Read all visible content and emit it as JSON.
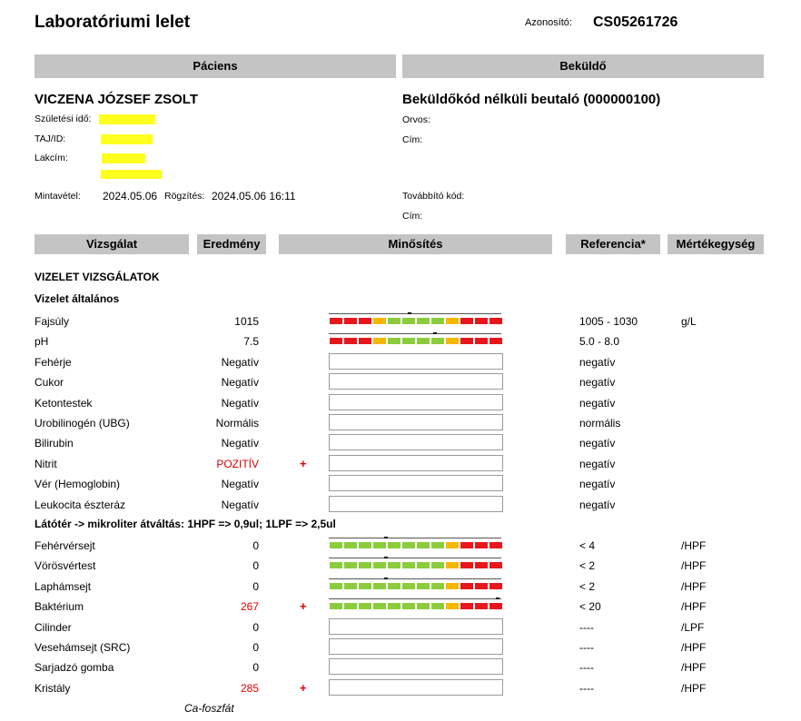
{
  "header": {
    "title": "Laboratóriumi lelet",
    "id_label": "Azonosító:",
    "id_value": "CS05261726"
  },
  "bands": {
    "patient": "Páciens",
    "sender": "Beküldő"
  },
  "patient": {
    "name": "VICZENA JÓZSEF ZSOLT",
    "birth_label": "Születési idő:",
    "taj_label": "TAJ/ID:",
    "address_label": "Lakcím:",
    "sampling_label": "Mintavétel:",
    "sampling_date": "2024.05.06",
    "record_label": "Rögzítés:",
    "record_date": "2024.05.06 16:11"
  },
  "sender": {
    "name": "Beküldőkód nélküli beutaló (000000100)",
    "doctor_label": "Orvos:",
    "address_label": "Cím:",
    "forward_label": "Továbbító kód:",
    "address2_label": "Cím:"
  },
  "columns": {
    "test": "Vizsgálat",
    "result": "Eredmény",
    "rating": "Minősítés",
    "reference": "Referencia*",
    "unit": "Mértékegység"
  },
  "sections": {
    "main": "VIZELET VIZSGÁLATOK",
    "general": "Vizelet általános",
    "conversion": "Látótér -> mikroliter átváltás: 1HPF => 0,9ul; 1LPF => 2,5ul"
  },
  "general_rows": [
    {
      "name": "Fajsúly",
      "result": "1015",
      "flag": "",
      "ref": "1005 - 1030",
      "unit": "g/L",
      "scale": "yellow",
      "marker": 0.47,
      "abnormal": false
    },
    {
      "name": "pH",
      "result": "7.5",
      "flag": "",
      "ref": "5.0 - 8.0",
      "unit": "",
      "scale": "yellow",
      "marker": 0.62,
      "abnormal": false
    },
    {
      "name": "Fehérje",
      "result": "Negatív",
      "flag": "",
      "ref": "negatív",
      "unit": "",
      "scale": "none",
      "abnormal": false
    },
    {
      "name": "Cukor",
      "result": "Negatív",
      "flag": "",
      "ref": "negatív",
      "unit": "",
      "scale": "none",
      "abnormal": false
    },
    {
      "name": "Ketontestek",
      "result": "Negatív",
      "flag": "",
      "ref": "negatív",
      "unit": "",
      "scale": "none",
      "abnormal": false
    },
    {
      "name": "Urobilinogén (UBG)",
      "result": "Normális",
      "flag": "",
      "ref": "normális",
      "unit": "",
      "scale": "none",
      "abnormal": false
    },
    {
      "name": "Bilirubin",
      "result": "Negatív",
      "flag": "",
      "ref": "negatív",
      "unit": "",
      "scale": "none",
      "abnormal": false
    },
    {
      "name": "Nitrit",
      "result": "POZITÍV",
      "flag": "+",
      "ref": "negatív",
      "unit": "",
      "scale": "none",
      "abnormal": true
    },
    {
      "name": "Vér (Hemoglobin)",
      "result": "Negatív",
      "flag": "",
      "ref": "negatív",
      "unit": "",
      "scale": "none",
      "abnormal": false
    },
    {
      "name": "Leukocita észteráz",
      "result": "Negatív",
      "flag": "",
      "ref": "negatív",
      "unit": "",
      "scale": "none",
      "abnormal": false
    }
  ],
  "micro_rows": [
    {
      "name": "Fehérvérsejt",
      "result": "0",
      "flag": "",
      "ref": "< 4",
      "unit": "/HPF",
      "scale": "green",
      "marker": 0.33,
      "abnormal": false
    },
    {
      "name": "Vörösvértest",
      "result": "0",
      "flag": "",
      "ref": "< 2",
      "unit": "/HPF",
      "scale": "green",
      "marker": 0.33,
      "abnormal": false
    },
    {
      "name": "Laphámsejt",
      "result": "0",
      "flag": "",
      "ref": "< 2",
      "unit": "/HPF",
      "scale": "green",
      "marker": 0.33,
      "abnormal": false
    },
    {
      "name": "Baktérium",
      "result": "267",
      "flag": "+",
      "ref": "< 20",
      "unit": "/HPF",
      "scale": "green",
      "marker": 0.99,
      "abnormal": true
    },
    {
      "name": "Cilinder",
      "result": "0",
      "flag": "",
      "ref": "----",
      "unit": "/LPF",
      "scale": "none",
      "abnormal": false
    },
    {
      "name": "Vesehámsejt (SRC)",
      "result": "0",
      "flag": "",
      "ref": "----",
      "unit": "/HPF",
      "scale": "none",
      "abnormal": false
    },
    {
      "name": "Sarjadzó gomba",
      "result": "0",
      "flag": "",
      "ref": "----",
      "unit": "/HPF",
      "scale": "none",
      "abnormal": false
    },
    {
      "name": "Kristály",
      "result": "285",
      "flag": "+",
      "ref": "----",
      "unit": "/HPF",
      "scale": "none",
      "abnormal": true
    }
  ],
  "footnote": "Ca-foszfát",
  "colors": {
    "band": "#c4c4c4",
    "red": "#e8171b",
    "yellow": "#f5b800",
    "green": "#8ccc3c",
    "highlight": "#ffff1f",
    "abnormal_text": "#e00000"
  },
  "scale_patterns": {
    "yellow": [
      "red",
      "red",
      "red",
      "yellow",
      "green",
      "green",
      "green",
      "green",
      "yellow",
      "red",
      "red",
      "red"
    ],
    "green": [
      "green",
      "green",
      "green",
      "green",
      "green",
      "green",
      "green",
      "green",
      "yellow",
      "red",
      "red",
      "red"
    ]
  }
}
